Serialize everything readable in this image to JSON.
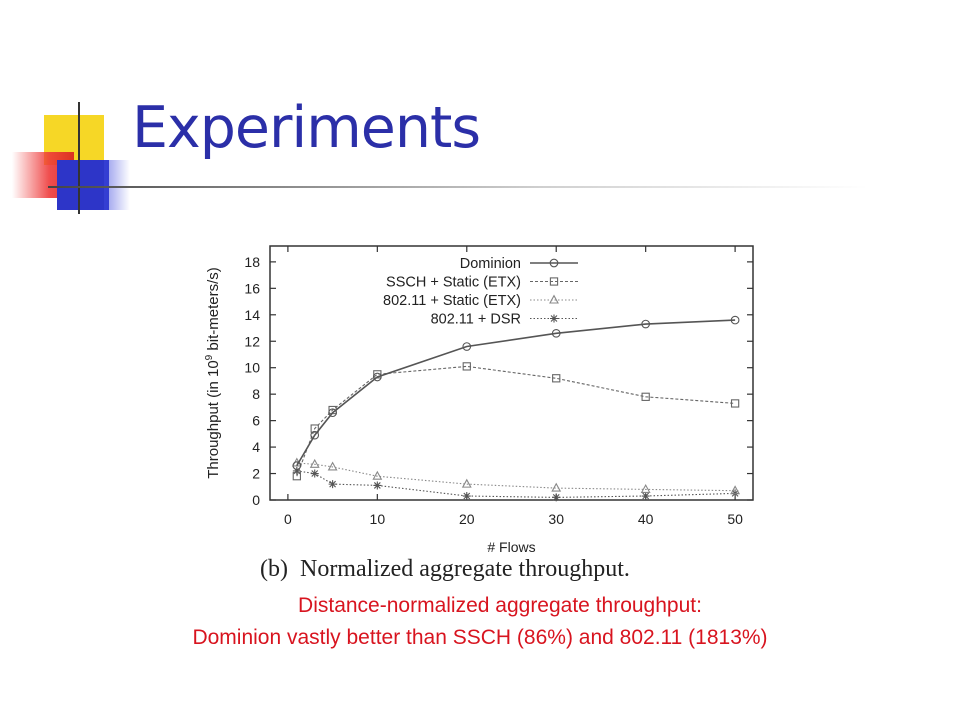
{
  "slide": {
    "title": "Experiments",
    "caption_line1": "Distance-normalized aggregate throughput:",
    "caption_line2": "Dominion vastly better than SSCH (86%) and 802.11 (1813%)"
  },
  "chart_data": {
    "type": "line",
    "caption": "(b)  Normalized aggregate throughput.",
    "xlabel": "# Flows",
    "ylabel": "Throughput (in 10^9 bit-meters/s)",
    "ylabel_parts": {
      "pre": "Throughput (in 10",
      "sup": "9",
      "post": " bit-meters/s)"
    },
    "xlim": [
      -2,
      52
    ],
    "ylim": [
      0,
      19.2
    ],
    "xticks": [
      0,
      10,
      20,
      30,
      40,
      50
    ],
    "yticks": [
      0,
      2,
      4,
      6,
      8,
      10,
      12,
      14,
      16,
      18
    ],
    "grid": false,
    "legend_position": "top-right",
    "x": [
      1,
      3,
      5,
      10,
      20,
      30,
      40,
      50
    ],
    "series": [
      {
        "name": "Dominion",
        "marker": "circle",
        "dash": "solid",
        "color": "#555555",
        "values": [
          2.6,
          4.9,
          6.6,
          9.3,
          11.6,
          12.6,
          13.3,
          13.6
        ]
      },
      {
        "name": "SSCH + Static (ETX)",
        "marker": "square",
        "dash": "dashed",
        "color": "#666666",
        "values": [
          1.8,
          5.4,
          6.8,
          9.5,
          10.1,
          9.2,
          7.8,
          7.3
        ]
      },
      {
        "name": "802.11 + Static (ETX)",
        "marker": "triangle",
        "dash": "dotted",
        "color": "#888888",
        "values": [
          2.8,
          2.7,
          2.5,
          1.8,
          1.2,
          0.9,
          0.8,
          0.7
        ]
      },
      {
        "name": "802.11 + DSR",
        "marker": "star",
        "dash": "dotted",
        "color": "#555555",
        "values": [
          2.2,
          2.0,
          1.2,
          1.1,
          0.3,
          0.2,
          0.3,
          0.5
        ]
      }
    ]
  }
}
